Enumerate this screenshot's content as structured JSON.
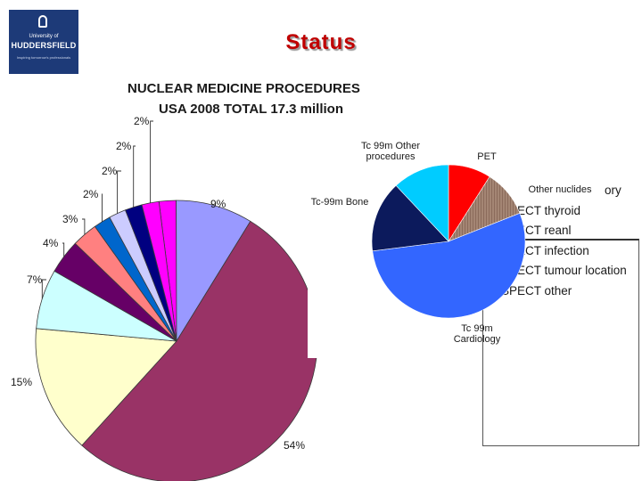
{
  "slide": {
    "title": "Status"
  },
  "logo": {
    "line1": "University of",
    "line2": "HUDDERSFIELD",
    "line3": "Inspiring tomorrow's professionals"
  },
  "colors": {
    "title_red": "#c00000",
    "logo_blue": "#1d3a78"
  },
  "chart_data": [
    {
      "type": "pie",
      "title": "NUCLEAR MEDICINE PROCEDURES",
      "subtitle": "USA 2008 TOTAL 17.3 million",
      "labels": [
        "2%",
        "9%",
        "54%",
        "15%",
        "7%",
        "4%",
        "3%",
        "2%",
        "2%",
        "2%",
        "2%"
      ],
      "values": [
        2,
        9,
        54,
        15,
        7,
        4,
        3,
        2,
        2,
        2,
        2
      ],
      "colors": [
        "#ff00ff",
        "#9999ff",
        "#993366",
        "#ffffcc",
        "#ccffff",
        "#660066",
        "#ff8080",
        "#0066cc",
        "#ccccff",
        "#000080",
        "#ff00ff"
      ],
      "legend": {
        "entries": [
          {
            "label": "ory",
            "color": ""
          },
          {
            "label": "SPECT thyroid",
            "color": "#ffffff"
          },
          {
            "label": "SPECT reanl",
            "color": "#0066cc"
          },
          {
            "label": "SPECT infection",
            "color": "#ccccff"
          },
          {
            "label": "SPECT tumour location",
            "color": "#000080"
          },
          {
            "label": "SPECT other",
            "color": "#ff00ff"
          }
        ],
        "placement": "bottom-right"
      }
    },
    {
      "type": "pie",
      "slices": [
        {
          "label": "PET",
          "value": 9,
          "color": "#ff0000"
        },
        {
          "label": "Other nuclides",
          "value": 10,
          "color": "#8b6b5b"
        },
        {
          "label": "Tc 99m\nCardiology",
          "value": 54,
          "color": "#3366ff"
        },
        {
          "label": "Tc-99m Bone",
          "value": 15,
          "color": "#0c1a5c"
        },
        {
          "label": "Tc 99m Other\nprocedures",
          "value": 12,
          "color": "#00ccff"
        }
      ]
    }
  ]
}
